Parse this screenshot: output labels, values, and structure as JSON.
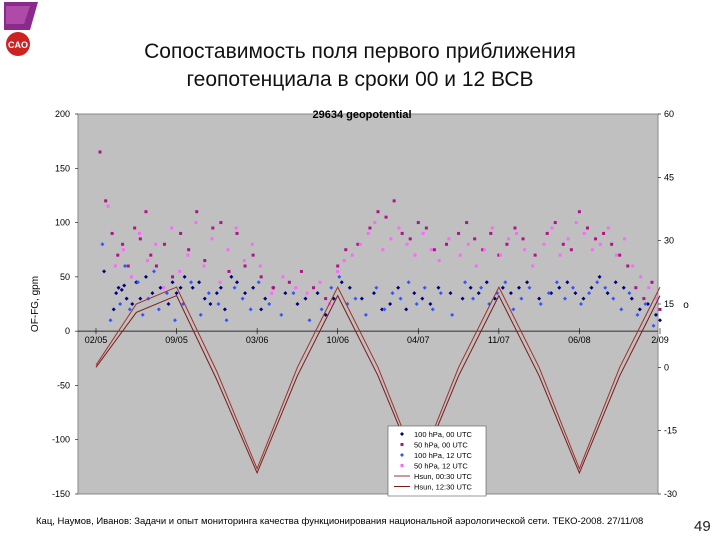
{
  "logo": {
    "text": "CAO"
  },
  "slide": {
    "title_line1": "Сопоставимость поля первого приближения",
    "title_line2": "геопотенциала в сроки 00 и 12 ВСВ",
    "footer": "Кац, Наумов, Иванов: Задачи и опыт мониторинга качества функционирования национальной аэрологической сети. ТЕКО-2008. 27/11/08",
    "page_number": "49"
  },
  "chart_data": {
    "type": "scatter",
    "title": "29634 geopotential",
    "ylabel": "OF-FG, gpm",
    "y2label": "o",
    "ylim": [
      -150,
      200
    ],
    "y2lim": [
      -30,
      60
    ],
    "yticks": [
      200,
      150,
      100,
      50,
      0,
      -50,
      -100,
      -150
    ],
    "y2ticks": [
      60,
      45,
      30,
      15,
      0,
      -15,
      -30
    ],
    "xticks": [
      "02/05",
      "09/05",
      "03/06",
      "10/06",
      "04/07",
      "11/07",
      "06/08",
      "2/09"
    ],
    "grid": false,
    "legend_position": "bottom-right",
    "colors": {
      "plot_bg": "#c0c0c0",
      "hpa100_00": "#000080",
      "hpa50_00": "#b0128c",
      "hpa100_12": "#3355ff",
      "hpa50_12": "#ff66ff",
      "hsun_00": "#a0302a",
      "hsun_12": "#7a1a1a"
    },
    "series": [
      {
        "name": "100 hPa, 00 UTC",
        "kind": "points",
        "x": [
          0.1,
          0.22,
          0.25,
          0.28,
          0.32,
          0.35,
          0.38,
          0.45,
          0.5,
          0.55,
          0.62,
          0.7,
          0.8,
          0.9,
          0.95,
          1.0,
          1.05,
          1.1,
          1.2,
          1.28,
          1.35,
          1.42,
          1.5,
          1.55,
          1.6,
          1.68,
          1.75,
          1.85,
          1.95,
          2.05,
          2.1,
          2.2,
          2.35,
          2.5,
          2.6,
          2.75,
          2.85,
          2.95,
          3.05,
          3.15,
          3.3,
          3.45,
          3.55,
          3.65,
          3.75,
          3.85,
          3.95,
          4.05,
          4.15,
          4.25,
          4.4,
          4.55,
          4.65,
          4.75,
          4.85,
          4.95,
          5.05,
          5.15,
          5.25,
          5.35,
          5.5,
          5.65,
          5.75,
          5.85,
          5.95,
          6.05,
          6.15,
          6.25,
          6.35,
          6.45,
          6.55,
          6.65,
          6.75,
          6.85,
          6.95,
          7.0
        ],
        "y": [
          55,
          20,
          35,
          40,
          38,
          42,
          30,
          25,
          45,
          30,
          50,
          35,
          40,
          25,
          45,
          35,
          40,
          50,
          40,
          45,
          30,
          25,
          35,
          40,
          20,
          50,
          45,
          35,
          40,
          20,
          30,
          40,
          35,
          25,
          30,
          35,
          15,
          30,
          45,
          40,
          30,
          35,
          20,
          25,
          40,
          20,
          35,
          30,
          25,
          40,
          35,
          30,
          40,
          35,
          45,
          30,
          40,
          35,
          40,
          45,
          30,
          35,
          40,
          45,
          35,
          30,
          40,
          50,
          35,
          45,
          40,
          30,
          20,
          25,
          15,
          10
        ]
      },
      {
        "name": "50 hPa, 00 UTC",
        "kind": "points",
        "x": [
          0.05,
          0.12,
          0.2,
          0.27,
          0.33,
          0.4,
          0.48,
          0.55,
          0.62,
          0.68,
          0.75,
          0.85,
          0.95,
          1.05,
          1.15,
          1.25,
          1.35,
          1.45,
          1.55,
          1.65,
          1.75,
          1.85,
          1.95,
          2.05,
          2.2,
          2.4,
          2.55,
          2.7,
          2.85,
          3.0,
          3.1,
          3.25,
          3.4,
          3.5,
          3.6,
          3.7,
          3.8,
          3.9,
          4.0,
          4.1,
          4.2,
          4.35,
          4.5,
          4.6,
          4.7,
          4.8,
          4.9,
          5.0,
          5.1,
          5.2,
          5.3,
          5.45,
          5.6,
          5.7,
          5.8,
          5.9,
          6.0,
          6.1,
          6.2,
          6.3,
          6.4,
          6.5,
          6.6,
          6.7,
          6.8,
          6.9,
          7.0
        ],
        "y": [
          165,
          120,
          90,
          70,
          80,
          60,
          95,
          85,
          110,
          70,
          60,
          80,
          50,
          90,
          75,
          110,
          65,
          95,
          100,
          55,
          90,
          60,
          70,
          50,
          40,
          45,
          55,
          40,
          30,
          60,
          75,
          80,
          95,
          110,
          105,
          120,
          90,
          85,
          100,
          95,
          75,
          80,
          90,
          100,
          85,
          75,
          90,
          70,
          80,
          95,
          85,
          70,
          90,
          100,
          80,
          75,
          110,
          95,
          85,
          90,
          80,
          70,
          60,
          40,
          30,
          45,
          20
        ]
      },
      {
        "name": "100 hPa, 12 UTC",
        "kind": "points",
        "x": [
          0.08,
          0.18,
          0.3,
          0.36,
          0.42,
          0.52,
          0.58,
          0.65,
          0.72,
          0.78,
          0.88,
          0.98,
          1.08,
          1.18,
          1.3,
          1.4,
          1.52,
          1.62,
          1.72,
          1.82,
          1.92,
          2.02,
          2.15,
          2.3,
          2.45,
          2.65,
          2.8,
          2.92,
          3.02,
          3.12,
          3.22,
          3.35,
          3.48,
          3.58,
          3.68,
          3.78,
          3.88,
          3.98,
          4.08,
          4.18,
          4.28,
          4.42,
          4.58,
          4.68,
          4.78,
          4.88,
          4.98,
          5.08,
          5.18,
          5.28,
          5.38,
          5.52,
          5.62,
          5.72,
          5.82,
          5.92,
          6.02,
          6.12,
          6.22,
          6.32,
          6.42,
          6.52,
          6.62,
          6.72,
          6.82,
          6.92
        ],
        "y": [
          80,
          10,
          25,
          60,
          20,
          45,
          15,
          30,
          55,
          20,
          35,
          10,
          25,
          45,
          15,
          35,
          25,
          10,
          40,
          30,
          20,
          45,
          25,
          15,
          35,
          10,
          20,
          40,
          50,
          25,
          30,
          15,
          40,
          20,
          35,
          30,
          45,
          25,
          40,
          20,
          35,
          15,
          45,
          30,
          40,
          25,
          35,
          45,
          20,
          30,
          40,
          25,
          35,
          45,
          30,
          40,
          25,
          35,
          45,
          40,
          30,
          20,
          35,
          15,
          25,
          5
        ]
      },
      {
        "name": "50 hPa, 12 UTC",
        "kind": "points",
        "x": [
          0.15,
          0.24,
          0.34,
          0.44,
          0.54,
          0.64,
          0.74,
          0.84,
          0.94,
          1.04,
          1.14,
          1.24,
          1.34,
          1.44,
          1.54,
          1.64,
          1.74,
          1.84,
          1.94,
          2.04,
          2.18,
          2.32,
          2.48,
          2.62,
          2.78,
          2.9,
          3.0,
          3.08,
          3.18,
          3.28,
          3.38,
          3.46,
          3.56,
          3.66,
          3.76,
          3.86,
          3.96,
          4.06,
          4.16,
          4.26,
          4.38,
          4.52,
          4.62,
          4.72,
          4.82,
          4.92,
          5.02,
          5.12,
          5.22,
          5.32,
          5.42,
          5.56,
          5.66,
          5.76,
          5.86,
          5.96,
          6.06,
          6.16,
          6.26,
          6.36,
          6.46,
          6.56,
          6.66,
          6.76,
          6.86,
          6.96
        ],
        "y": [
          115,
          60,
          75,
          50,
          90,
          65,
          80,
          40,
          95,
          55,
          70,
          100,
          60,
          85,
          45,
          75,
          95,
          65,
          80,
          60,
          35,
          50,
          40,
          35,
          45,
          25,
          55,
          65,
          70,
          80,
          90,
          100,
          75,
          85,
          95,
          80,
          70,
          90,
          75,
          65,
          85,
          70,
          80,
          60,
          75,
          95,
          70,
          85,
          90,
          75,
          60,
          80,
          95,
          70,
          85,
          100,
          90,
          75,
          80,
          95,
          70,
          85,
          60,
          50,
          40,
          30
        ]
      },
      {
        "name": "Hsun, 00:30 UTC",
        "kind": "line",
        "axis": "y2",
        "x": [
          0.0,
          0.5,
          1.0,
          1.5,
          2.0,
          2.5,
          3.0,
          3.5,
          4.0,
          4.5,
          5.0,
          5.5,
          6.0,
          6.5,
          7.0
        ],
        "y": [
          0.5,
          15,
          19,
          -1,
          -24,
          0,
          19,
          0,
          -24,
          0,
          19,
          0,
          -24,
          0,
          19
        ]
      },
      {
        "name": "Hsun, 12:30 UTC",
        "kind": "line",
        "axis": "y2",
        "x": [
          0.0,
          0.5,
          1.0,
          1.5,
          2.0,
          2.5,
          3.0,
          3.5,
          4.0,
          4.5,
          5.0,
          5.5,
          6.0,
          6.5,
          7.0
        ],
        "y": [
          0,
          13,
          17,
          -3,
          -25,
          -2,
          17,
          -2,
          -25,
          -2,
          17,
          -2,
          -25,
          -2,
          17
        ]
      }
    ]
  }
}
